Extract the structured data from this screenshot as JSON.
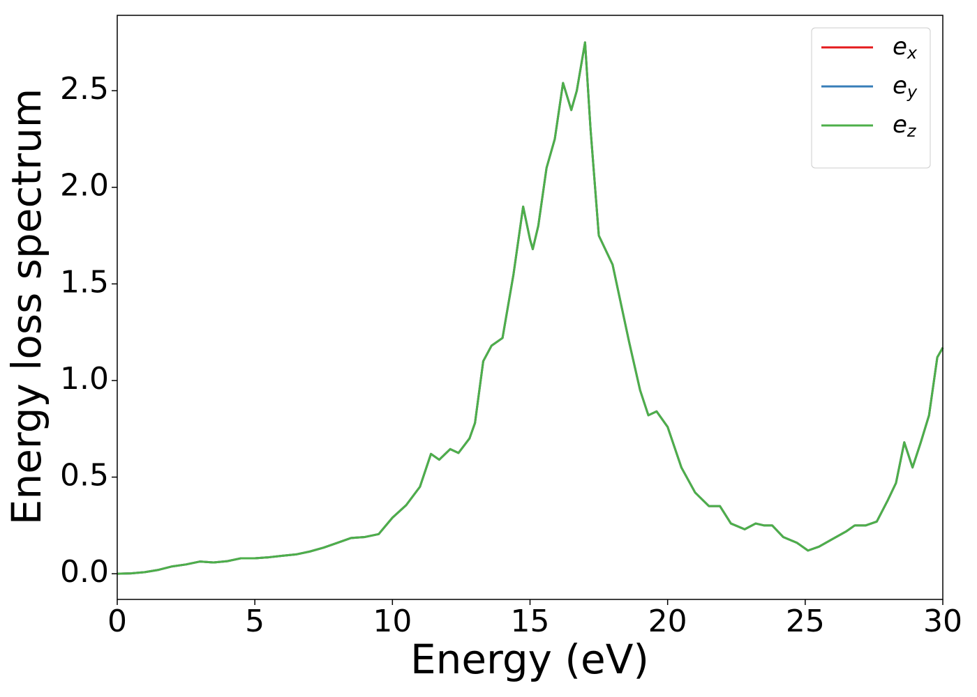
{
  "chart_data": {
    "type": "line",
    "xlabel": "Energy (eV)",
    "ylabel": "Energy loss spectrum",
    "x": [
      0,
      0.5,
      1,
      1.5,
      2,
      2.5,
      3,
      3.5,
      4,
      4.5,
      5,
      5.5,
      6,
      6.5,
      7,
      7.5,
      8,
      8.5,
      9,
      9.5,
      10,
      10.5,
      11,
      11.4,
      11.7,
      12.1,
      12.4,
      12.8,
      13,
      13.3,
      13.6,
      14,
      14.4,
      14.75,
      15,
      15.1,
      15.3,
      15.6,
      15.9,
      16.2,
      16.5,
      16.7,
      17,
      17.2,
      17.5,
      17.8,
      18,
      18.3,
      18.6,
      19,
      19.3,
      19.6,
      20,
      20.5,
      21,
      21.5,
      21.9,
      22.3,
      22.8,
      23.2,
      23.5,
      23.8,
      24.2,
      24.7,
      25.1,
      25.5,
      26,
      26.5,
      26.8,
      27.2,
      27.6,
      28,
      28.3,
      28.6,
      28.9,
      29.2,
      29.5,
      29.8,
      30
    ],
    "series": [
      {
        "name": "ex",
        "color": "#e41a1c",
        "values": [
          0,
          0.002,
          0.008,
          0.02,
          0.038,
          0.048,
          0.063,
          0.058,
          0.065,
          0.08,
          0.08,
          0.085,
          0.093,
          0.1,
          0.115,
          0.135,
          0.16,
          0.185,
          0.19,
          0.205,
          0.29,
          0.355,
          0.45,
          0.62,
          0.59,
          0.645,
          0.625,
          0.7,
          0.78,
          1.1,
          1.18,
          1.22,
          1.55,
          1.9,
          1.73,
          1.68,
          1.8,
          2.1,
          2.25,
          2.54,
          2.4,
          2.5,
          2.75,
          2.3,
          1.75,
          1.66,
          1.6,
          1.4,
          1.2,
          0.95,
          0.82,
          0.84,
          0.76,
          0.55,
          0.42,
          0.35,
          0.35,
          0.26,
          0.23,
          0.26,
          0.25,
          0.25,
          0.19,
          0.16,
          0.12,
          0.14,
          0.18,
          0.22,
          0.25,
          0.25,
          0.27,
          0.38,
          0.47,
          0.68,
          0.55,
          0.68,
          0.82,
          1.12,
          1.17
        ]
      },
      {
        "name": "ey",
        "color": "#377eb8",
        "values": [
          0,
          0.002,
          0.008,
          0.02,
          0.038,
          0.048,
          0.063,
          0.058,
          0.065,
          0.08,
          0.08,
          0.085,
          0.093,
          0.1,
          0.115,
          0.135,
          0.16,
          0.185,
          0.19,
          0.205,
          0.29,
          0.355,
          0.45,
          0.62,
          0.59,
          0.645,
          0.625,
          0.7,
          0.78,
          1.1,
          1.18,
          1.22,
          1.55,
          1.9,
          1.73,
          1.68,
          1.8,
          2.1,
          2.25,
          2.54,
          2.4,
          2.5,
          2.75,
          2.3,
          1.75,
          1.66,
          1.6,
          1.4,
          1.2,
          0.95,
          0.82,
          0.84,
          0.76,
          0.55,
          0.42,
          0.35,
          0.35,
          0.26,
          0.23,
          0.26,
          0.25,
          0.25,
          0.19,
          0.16,
          0.12,
          0.14,
          0.18,
          0.22,
          0.25,
          0.25,
          0.27,
          0.38,
          0.47,
          0.68,
          0.55,
          0.68,
          0.82,
          1.12,
          1.17
        ]
      },
      {
        "name": "ez",
        "color": "#4daf4a",
        "values": [
          0,
          0.002,
          0.008,
          0.02,
          0.038,
          0.048,
          0.063,
          0.058,
          0.065,
          0.08,
          0.08,
          0.085,
          0.093,
          0.1,
          0.115,
          0.135,
          0.16,
          0.185,
          0.19,
          0.205,
          0.29,
          0.355,
          0.45,
          0.62,
          0.59,
          0.645,
          0.625,
          0.7,
          0.78,
          1.1,
          1.18,
          1.22,
          1.55,
          1.9,
          1.73,
          1.68,
          1.8,
          2.1,
          2.25,
          2.54,
          2.4,
          2.5,
          2.75,
          2.3,
          1.75,
          1.66,
          1.6,
          1.4,
          1.2,
          0.95,
          0.82,
          0.84,
          0.76,
          0.55,
          0.42,
          0.35,
          0.35,
          0.26,
          0.23,
          0.26,
          0.25,
          0.25,
          0.19,
          0.16,
          0.12,
          0.14,
          0.18,
          0.22,
          0.25,
          0.25,
          0.27,
          0.38,
          0.47,
          0.68,
          0.55,
          0.68,
          0.82,
          1.12,
          1.17
        ]
      }
    ],
    "xlim": [
      0,
      30
    ],
    "xticks": [
      0,
      5,
      10,
      15,
      20,
      25,
      30
    ],
    "ylim": [
      -0.133,
      2.89
    ],
    "yticks": [
      {
        "value": 0,
        "label": "0.0"
      },
      {
        "value": 0.5,
        "label": "0.5"
      },
      {
        "value": 1,
        "label": "1.0"
      },
      {
        "value": 1.5,
        "label": "1.5"
      },
      {
        "value": 2,
        "label": "2.0"
      },
      {
        "value": 2.5,
        "label": "2.5"
      }
    ],
    "legend": "upper right",
    "grid": false
  }
}
